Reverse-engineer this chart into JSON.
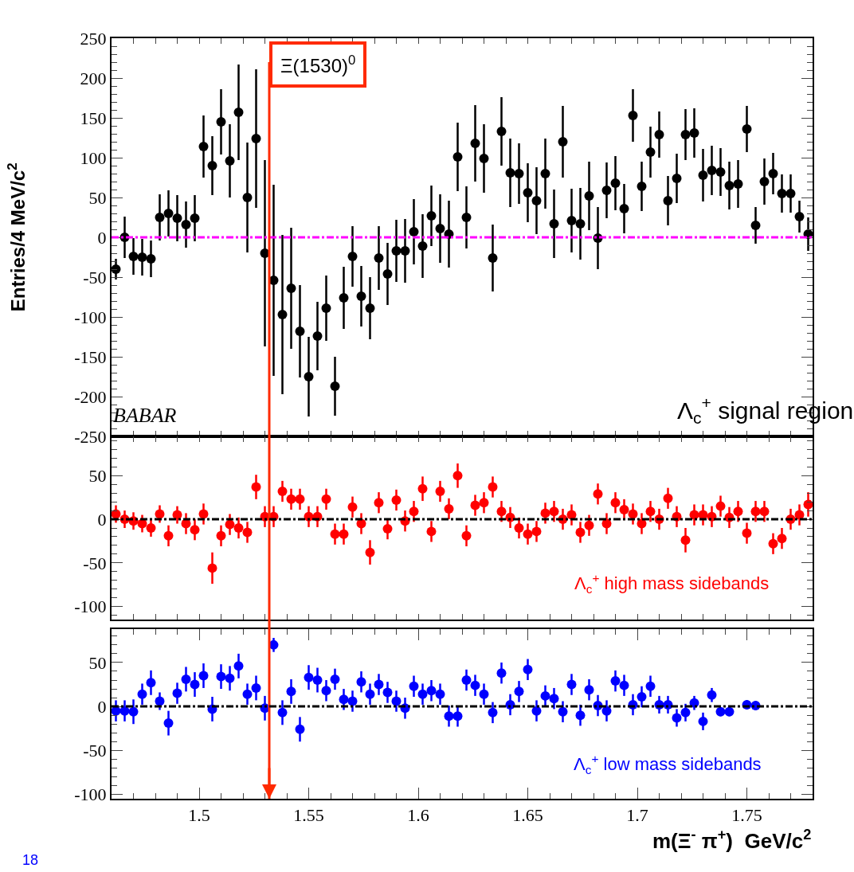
{
  "chart_data": [
    {
      "type": "scatter",
      "ylabel": "Entries/4 MeV/c$^{2}$",
      "xlim": [
        1.46,
        1.78
      ],
      "ylim": [
        -250,
        250
      ],
      "tick_labels": "y",
      "marker": "circle",
      "xticks": [
        {
          "value": 1.5,
          "label": null
        },
        {
          "value": 1.55,
          "label": null
        },
        {
          "value": 1.6,
          "label": null
        },
        {
          "value": 1.65,
          "label": null
        },
        {
          "value": 1.7,
          "label": null
        },
        {
          "value": 1.75,
          "label": null
        }
      ],
      "yticks": [
        -250,
        -200,
        -150,
        -100,
        -50,
        0,
        50,
        100,
        150,
        200,
        250
      ],
      "annotations": [
        "BABAR",
        "Λ$_{c}$$^{+}$ signal region"
      ],
      "ref_lines": [
        {
          "axis": "y",
          "value": 0,
          "color": "#ff00ff",
          "line_style": "dashdot"
        },
        {
          "axis": "x",
          "value": 1.532,
          "label": "Ξ(1530)$^{0}$",
          "color": "#ff2a00",
          "line_style": "solid"
        }
      ],
      "series": [
        {
          "color": "#000000",
          "x": [
            1.462,
            1.466,
            1.47,
            1.474,
            1.478,
            1.482,
            1.486,
            1.49,
            1.494,
            1.498,
            1.502,
            1.506,
            1.51,
            1.514,
            1.518,
            1.522,
            1.526,
            1.53,
            1.534,
            1.538,
            1.542,
            1.546,
            1.55,
            1.554,
            1.558,
            1.562,
            1.566,
            1.57,
            1.574,
            1.578,
            1.582,
            1.586,
            1.59,
            1.594,
            1.598,
            1.602,
            1.606,
            1.61,
            1.614,
            1.618,
            1.622,
            1.626,
            1.63,
            1.634,
            1.638,
            1.642,
            1.646,
            1.65,
            1.654,
            1.658,
            1.662,
            1.666,
            1.67,
            1.674,
            1.678,
            1.682,
            1.686,
            1.69,
            1.694,
            1.698,
            1.702,
            1.706,
            1.71,
            1.714,
            1.718,
            1.722,
            1.726,
            1.73,
            1.734,
            1.738,
            1.742,
            1.746,
            1.75,
            1.754,
            1.758,
            1.762,
            1.766,
            1.77,
            1.774,
            1.778
          ],
          "values": [
            -40,
            0,
            -24,
            -25,
            -27,
            25,
            30,
            24,
            16,
            24,
            114,
            90,
            145,
            96,
            157,
            50,
            124,
            -20,
            -54,
            -97,
            -64,
            -118,
            -175,
            -124,
            -89,
            -187,
            -76,
            -24,
            -74,
            -89,
            -26,
            -46,
            -17,
            -17,
            7,
            -11,
            27,
            11,
            4,
            101,
            25,
            118,
            99,
            -26,
            133,
            81,
            80,
            56,
            46,
            80,
            17,
            120,
            21,
            17,
            52,
            -1,
            59,
            68,
            36,
            153,
            64,
            107,
            129,
            46,
            74,
            129,
            131,
            78,
            84,
            82,
            65,
            67,
            136,
            15,
            70,
            80,
            55,
            55,
            26,
            4
          ],
          "errors": [
            13,
            26,
            23,
            23,
            23,
            29,
            29,
            29,
            29,
            29,
            39,
            37,
            41,
            46,
            60,
            69,
            87,
            117,
            120,
            100,
            76,
            58,
            50,
            43,
            41,
            37,
            39,
            38,
            38,
            39,
            40,
            39,
            39,
            40,
            41,
            40,
            38,
            43,
            42,
            43,
            39,
            48,
            43,
            42,
            43,
            43,
            38,
            37,
            42,
            44,
            43,
            45,
            40,
            45,
            43,
            39,
            35,
            34,
            31,
            33,
            31,
            32,
            29,
            31,
            31,
            32,
            31,
            33,
            31,
            30,
            30,
            30,
            29,
            23,
            29,
            26,
            24,
            24,
            20,
            21
          ]
        }
      ]
    },
    {
      "type": "scatter",
      "xlim": [
        1.46,
        1.78
      ],
      "ylim": [
        -115,
        95
      ],
      "tick_labels": "y",
      "marker": "circle",
      "xticks": [
        {
          "value": 1.5,
          "label": null
        },
        {
          "value": 1.55,
          "label": null
        },
        {
          "value": 1.6,
          "label": null
        },
        {
          "value": 1.65,
          "label": null
        },
        {
          "value": 1.7,
          "label": null
        },
        {
          "value": 1.75,
          "label": null
        }
      ],
      "yticks": [
        -100,
        -50,
        0,
        50
      ],
      "annotations": [
        "Λ$_{c}$$^{+}$ high mass sidebands"
      ],
      "ref_lines": [
        {
          "axis": "y",
          "value": 0,
          "color": "#000000",
          "line_style": "dashdot"
        }
      ],
      "series": [
        {
          "color": "#ff0000",
          "x": [
            1.462,
            1.466,
            1.47,
            1.474,
            1.478,
            1.482,
            1.486,
            1.49,
            1.494,
            1.498,
            1.502,
            1.506,
            1.51,
            1.514,
            1.518,
            1.522,
            1.526,
            1.53,
            1.534,
            1.538,
            1.542,
            1.546,
            1.55,
            1.554,
            1.558,
            1.562,
            1.566,
            1.57,
            1.574,
            1.578,
            1.582,
            1.586,
            1.59,
            1.594,
            1.598,
            1.602,
            1.606,
            1.61,
            1.614,
            1.618,
            1.622,
            1.626,
            1.63,
            1.634,
            1.638,
            1.642,
            1.646,
            1.65,
            1.654,
            1.658,
            1.662,
            1.666,
            1.67,
            1.674,
            1.678,
            1.682,
            1.686,
            1.69,
            1.694,
            1.698,
            1.702,
            1.706,
            1.71,
            1.714,
            1.718,
            1.722,
            1.726,
            1.73,
            1.734,
            1.738,
            1.742,
            1.746,
            1.75,
            1.754,
            1.758,
            1.762,
            1.766,
            1.77,
            1.774,
            1.778
          ],
          "values": [
            6,
            0,
            -2,
            -5,
            -10,
            6,
            -19,
            5,
            -5,
            -12,
            6,
            -56,
            -19,
            -6,
            -10,
            -15,
            37,
            3,
            3,
            32,
            23,
            23,
            3,
            3,
            23,
            -17,
            -17,
            14,
            -5,
            -38,
            19,
            -11,
            22,
            -2,
            9,
            35,
            -14,
            32,
            12,
            50,
            -19,
            16,
            19,
            37,
            9,
            2,
            -10,
            -17,
            -14,
            7,
            9,
            0,
            5,
            -15,
            -7,
            29,
            -5,
            19,
            11,
            6,
            -5,
            9,
            0,
            24,
            3,
            -24,
            5,
            5,
            3,
            15,
            2,
            9,
            -16,
            9,
            9,
            -28,
            -22,
            0,
            5,
            17
          ],
          "errors": [
            10,
            10,
            10,
            10,
            10,
            10,
            12,
            10,
            12,
            12,
            12,
            18,
            12,
            12,
            12,
            12,
            14,
            12,
            12,
            12,
            12,
            12,
            12,
            12,
            12,
            12,
            12,
            12,
            12,
            14,
            12,
            12,
            12,
            12,
            12,
            14,
            12,
            12,
            12,
            14,
            12,
            12,
            12,
            12,
            12,
            12,
            12,
            12,
            12,
            12,
            12,
            12,
            12,
            12,
            12,
            12,
            12,
            12,
            12,
            12,
            12,
            12,
            12,
            12,
            12,
            14,
            12,
            12,
            12,
            12,
            12,
            12,
            12,
            12,
            12,
            12,
            12,
            12,
            12,
            14
          ]
        }
      ]
    },
    {
      "type": "scatter",
      "xlabel": "m(Ξ$^{-}$ π$^{+}$)  GeV/c$^{2}$",
      "xlim": [
        1.46,
        1.78
      ],
      "ylim": [
        -105,
        88
      ],
      "marker": "circle",
      "xticks": [
        1.5,
        1.55,
        1.6,
        1.65,
        1.7,
        1.75
      ],
      "yticks": [
        -100,
        -50,
        0,
        50
      ],
      "annotations": [
        "Λ$_{c}$$^{+}$ low mass sidebands",
        "18"
      ],
      "ref_lines": [
        {
          "axis": "y",
          "value": 0,
          "color": "#000000",
          "line_style": "dashdot"
        }
      ],
      "series": [
        {
          "color": "#0000ff",
          "x": [
            1.462,
            1.466,
            1.47,
            1.474,
            1.478,
            1.482,
            1.486,
            1.49,
            1.494,
            1.498,
            1.502,
            1.506,
            1.51,
            1.514,
            1.518,
            1.522,
            1.526,
            1.53,
            1.534,
            1.538,
            1.542,
            1.546,
            1.55,
            1.554,
            1.558,
            1.562,
            1.566,
            1.57,
            1.574,
            1.578,
            1.582,
            1.586,
            1.59,
            1.594,
            1.598,
            1.602,
            1.606,
            1.61,
            1.614,
            1.618,
            1.622,
            1.626,
            1.63,
            1.634,
            1.638,
            1.642,
            1.646,
            1.65,
            1.654,
            1.658,
            1.662,
            1.666,
            1.67,
            1.674,
            1.678,
            1.682,
            1.686,
            1.69,
            1.694,
            1.698,
            1.702,
            1.706,
            1.71,
            1.714,
            1.718,
            1.722,
            1.726,
            1.73,
            1.734,
            1.738,
            1.742,
            1.75,
            1.754
          ],
          "values": [
            -5,
            -5,
            -6,
            14,
            27,
            6,
            -19,
            15,
            31,
            25,
            35,
            -3,
            34,
            32,
            46,
            14,
            21,
            -2,
            70,
            -7,
            17,
            -26,
            33,
            30,
            18,
            31,
            8,
            6,
            28,
            14,
            25,
            16,
            6,
            -2,
            23,
            14,
            18,
            14,
            -11,
            -11,
            30,
            24,
            14,
            -7,
            38,
            2,
            17,
            42,
            -5,
            12,
            9,
            -6,
            25,
            -10,
            19,
            1,
            -5,
            29,
            24,
            2,
            11,
            23,
            2,
            2,
            -13,
            -7,
            4,
            -17,
            13,
            -6,
            -6,
            2,
            1
          ],
          "errors": [
            12,
            12,
            14,
            12,
            14,
            10,
            14,
            12,
            14,
            14,
            14,
            14,
            14,
            14,
            14,
            12,
            14,
            14,
            8,
            14,
            14,
            14,
            14,
            14,
            12,
            12,
            12,
            12,
            12,
            12,
            12,
            12,
            12,
            12,
            12,
            12,
            12,
            12,
            12,
            12,
            12,
            12,
            12,
            12,
            12,
            12,
            12,
            12,
            12,
            12,
            12,
            12,
            12,
            12,
            12,
            12,
            12,
            12,
            12,
            12,
            12,
            12,
            10,
            10,
            10,
            10,
            8,
            10,
            8,
            5,
            5,
            5,
            5
          ]
        }
      ]
    }
  ]
}
